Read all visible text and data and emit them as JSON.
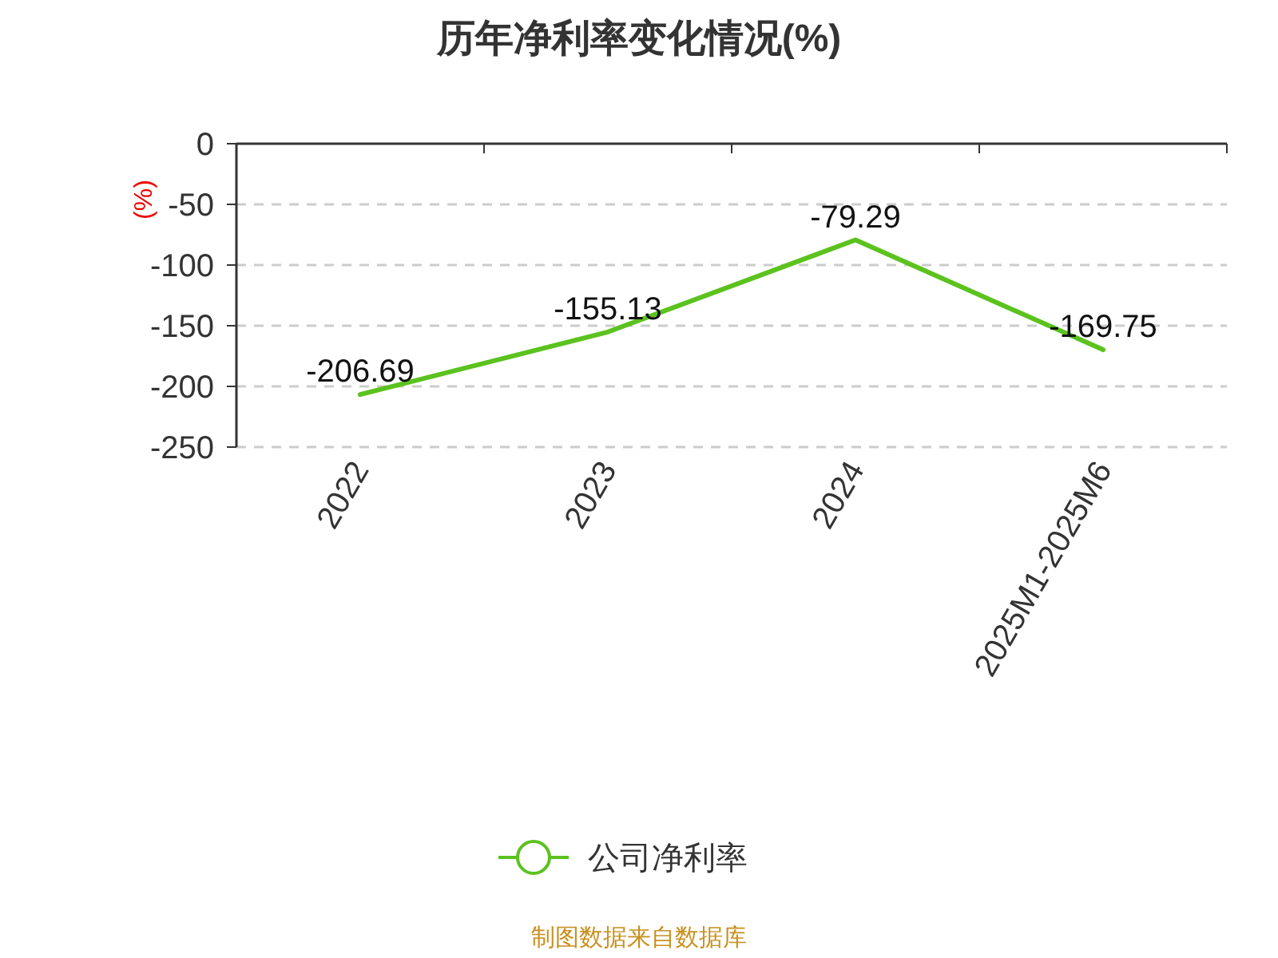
{
  "chart_data": {
    "type": "line",
    "title": "历年净利率变化情况(%)",
    "ylabel": "(%)",
    "categories": [
      "2022",
      "2023",
      "2024",
      "2025M1-2025M6"
    ],
    "series": [
      {
        "name": "公司净利率",
        "color": "#5bc21e",
        "values": [
          -206.69,
          -155.13,
          -79.29,
          -169.75
        ]
      }
    ],
    "ylim": [
      -250,
      0
    ],
    "yticks": [
      0,
      -50,
      -100,
      -150,
      -200,
      -250
    ],
    "grid": "y",
    "legend": "bottom",
    "marker": "none",
    "line_style": "solid",
    "data_labels": true,
    "annotations": [
      "制图数据来自数据库"
    ]
  }
}
